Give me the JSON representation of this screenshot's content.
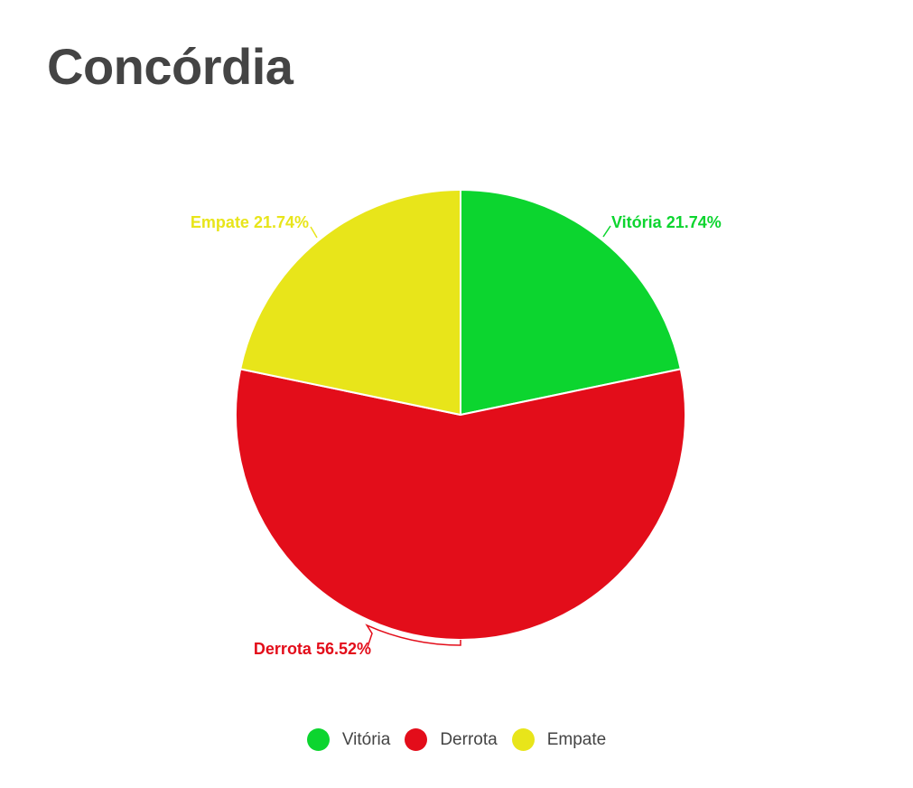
{
  "chart_data": {
    "type": "pie",
    "title": "Concórdia",
    "slices": [
      {
        "name": "Vitória",
        "value": 21.74,
        "label": "Vitória 21.74%",
        "color": "#0cd52f"
      },
      {
        "name": "Derrota",
        "value": 56.52,
        "label": "Derrota 56.52%",
        "color": "#e30d1a"
      },
      {
        "name": "Empate",
        "value": 21.74,
        "label": "Empate 21.74%",
        "color": "#e8e51a"
      }
    ],
    "legend_position": "bottom"
  }
}
